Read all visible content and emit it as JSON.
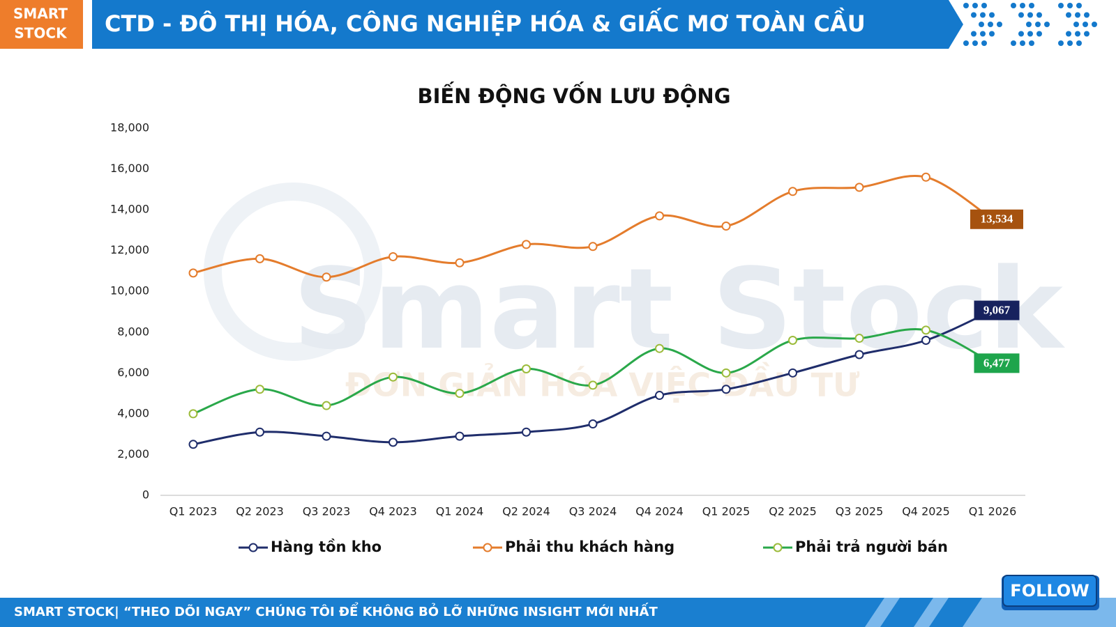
{
  "header": {
    "badge": [
      "SMART",
      "STOCK"
    ],
    "title": "CTD - ĐÔ THỊ HÓA, CÔNG NGHIỆP HÓA & GIẤC MƠ TOÀN CẦU"
  },
  "watermark": {
    "brand": "Smart Stock",
    "slogan": "ĐƠN GIẢN HÓA VIỆC ĐẦU TƯ"
  },
  "chart_data": {
    "type": "line",
    "title": "BIẾN ĐỘNG VỐN LƯU ĐỘNG",
    "categories": [
      "Q1 2023",
      "Q2 2023",
      "Q3 2023",
      "Q4 2023",
      "Q1 2024",
      "Q2 2024",
      "Q3 2024",
      "Q4 2024",
      "Q1 2025",
      "Q2 2025",
      "Q3 2025",
      "Q4 2025",
      "Q1 2026"
    ],
    "series": [
      {
        "name": "Hàng tồn kho",
        "color": "#1f2d6b",
        "label_color": "#17225e",
        "values": [
          2500,
          3100,
          2900,
          2600,
          2900,
          3100,
          3500,
          4900,
          5200,
          6000,
          6900,
          7600,
          9067
        ],
        "value_labels": [
          null,
          null,
          null,
          null,
          null,
          null,
          null,
          null,
          null,
          null,
          null,
          null,
          "9,067"
        ]
      },
      {
        "name": "Phải thu khách hàng",
        "color": "#e47c2c",
        "label_color": "#a6520f",
        "values": [
          10900,
          11600,
          10700,
          11700,
          11400,
          12300,
          12200,
          13700,
          13200,
          14900,
          15100,
          15600,
          13534
        ],
        "value_labels": [
          null,
          null,
          null,
          null,
          null,
          null,
          null,
          null,
          null,
          null,
          null,
          null,
          "13,534"
        ]
      },
      {
        "name": "Phải trả người bán",
        "color": "#2aa84a",
        "marker_color": "#9cbb3a",
        "label_color": "#1ea54c",
        "values": [
          4000,
          5200,
          4400,
          5800,
          5000,
          6200,
          5400,
          7200,
          6000,
          7600,
          7700,
          8100,
          6477
        ],
        "value_labels": [
          null,
          null,
          null,
          null,
          null,
          null,
          null,
          null,
          null,
          null,
          null,
          null,
          "6,477"
        ]
      }
    ],
    "ylim": [
      0,
      18000
    ],
    "yticks": [
      0,
      {
        "value": 2000,
        "label": "2,000"
      },
      {
        "value": 4000,
        "label": "4,000"
      },
      {
        "value": 6000,
        "label": "6,000"
      },
      {
        "value": 8000,
        "label": "8,000"
      },
      {
        "value": 10000,
        "label": "10,000"
      },
      {
        "value": 12000,
        "label": "12,000"
      },
      {
        "value": 14000,
        "label": "14,000"
      },
      {
        "value": 16000,
        "label": "16,000"
      },
      {
        "value": 18000,
        "label": "18,000"
      }
    ],
    "grid": false,
    "legend": "bottom"
  },
  "footer": {
    "text": "SMART STOCK| “THEO DÕI NGAY” CHÚNG TÔI ĐỂ KHÔNG BỎ LỠ NHỮNG INSIGHT MỚI NHẤT",
    "button": "FOLLOW"
  }
}
